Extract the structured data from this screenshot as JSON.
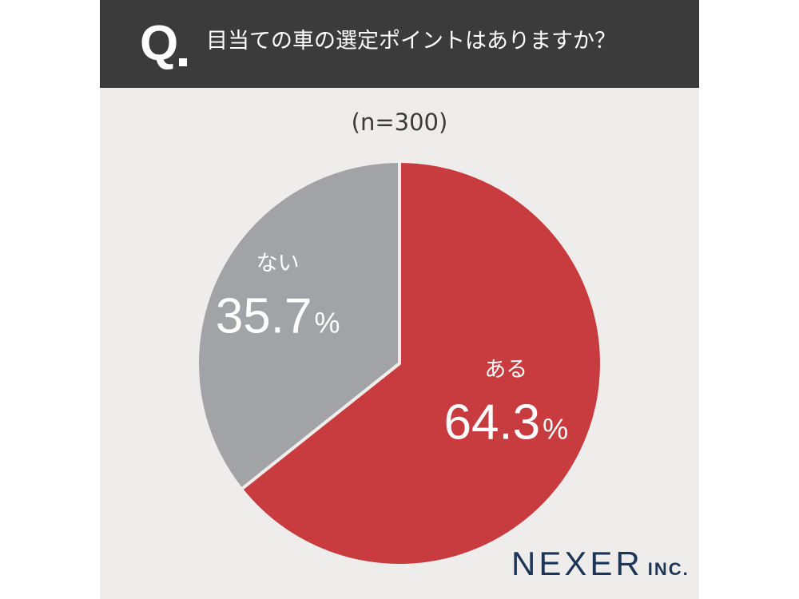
{
  "header": {
    "q_mark": "Q",
    "question": "目当ての車の選定ポイントはありますか？"
  },
  "sample_size": "(n=300)",
  "brand": {
    "name": "NEXER",
    "suffix": "INC."
  },
  "colors": {
    "header_bg": "#3b3b3b",
    "page_bg": "#efedec",
    "slice_yes": "#c83c3f",
    "slice_no": "#a2a3a7",
    "brand": "#1d3557"
  },
  "chart_data": {
    "type": "pie",
    "title": "目当ての車の選定ポイントはありますか？",
    "labels": [
      "ある",
      "ない"
    ],
    "values": [
      64.3,
      35.7
    ],
    "value_labels": [
      "64.3",
      "35.7"
    ],
    "unit": "%",
    "colors": [
      "#c83c3f",
      "#a2a3a7"
    ],
    "start_angle": "12 o'clock",
    "direction": "clockwise"
  }
}
